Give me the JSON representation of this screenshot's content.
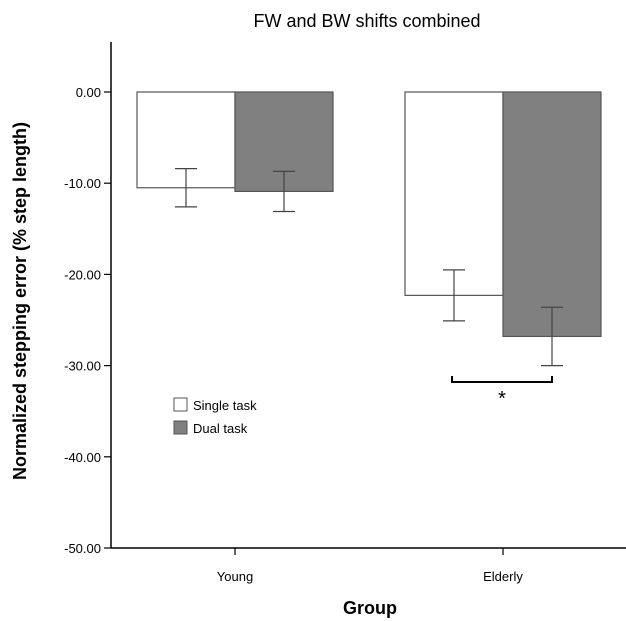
{
  "chart_data": {
    "type": "bar",
    "title": "FW and BW shifts combined",
    "xlabel": "Group",
    "ylabel": "Normalized stepping error (% step length)",
    "categories": [
      "Young",
      "Elderly"
    ],
    "series": [
      {
        "name": "Single task",
        "values": [
          -10.5,
          -22.3
        ],
        "error": [
          2.1,
          2.8
        ],
        "color": "#ffffff"
      },
      {
        "name": "Dual task",
        "values": [
          -10.9,
          -26.8
        ],
        "error": [
          2.2,
          3.2
        ],
        "color": "#808080"
      }
    ],
    "ylim": [
      -50,
      0
    ],
    "yticks": [
      "0.00",
      "-10.00",
      "-20.00",
      "-30.00",
      "-40.00",
      "-50.00"
    ],
    "ytick_values": [
      0,
      -10,
      -20,
      -30,
      -40,
      -50
    ],
    "legend_placement": "lower-left",
    "grid": false,
    "annotation": {
      "text": "*",
      "category": "Elderly"
    }
  }
}
